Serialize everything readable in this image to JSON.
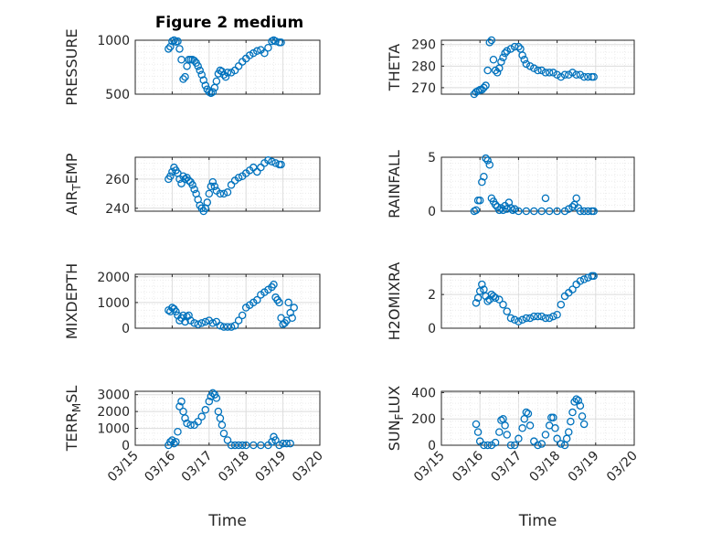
{
  "figure": {
    "title": "Figure 2 medium"
  },
  "style": {
    "marker_color": "#0072BD",
    "grid_color": "#dcdcdc",
    "axis_color": "#262626"
  },
  "chart_data": [
    {
      "type": "scatter",
      "ylabel": "PRESSURE",
      "yticks": [
        "500",
        "1000"
      ],
      "ylim": [
        500,
        1000
      ],
      "xlim": [
        "03/15",
        "03/20"
      ],
      "points": [
        [
          0.9,
          920
        ],
        [
          0.95,
          940
        ],
        [
          1.0,
          990
        ],
        [
          1.05,
          1000
        ],
        [
          1.1,
          985
        ],
        [
          1.15,
          990
        ],
        [
          1.2,
          920
        ],
        [
          1.25,
          820
        ],
        [
          1.3,
          640
        ],
        [
          1.35,
          660
        ],
        [
          1.4,
          760
        ],
        [
          1.45,
          820
        ],
        [
          1.5,
          820
        ],
        [
          1.55,
          820
        ],
        [
          1.6,
          810
        ],
        [
          1.65,
          790
        ],
        [
          1.7,
          760
        ],
        [
          1.75,
          720
        ],
        [
          1.8,
          680
        ],
        [
          1.85,
          630
        ],
        [
          1.9,
          580
        ],
        [
          1.95,
          545
        ],
        [
          2.0,
          520
        ],
        [
          2.05,
          510
        ],
        [
          2.1,
          520
        ],
        [
          2.15,
          560
        ],
        [
          2.2,
          620
        ],
        [
          2.25,
          690
        ],
        [
          2.3,
          720
        ],
        [
          2.35,
          710
        ],
        [
          2.4,
          680
        ],
        [
          2.45,
          660
        ],
        [
          2.5,
          700
        ],
        [
          2.6,
          700
        ],
        [
          2.7,
          720
        ],
        [
          2.8,
          760
        ],
        [
          2.9,
          800
        ],
        [
          3.0,
          830
        ],
        [
          3.1,
          860
        ],
        [
          3.2,
          880
        ],
        [
          3.3,
          900
        ],
        [
          3.4,
          910
        ],
        [
          3.5,
          880
        ],
        [
          3.6,
          930
        ],
        [
          3.7,
          990
        ],
        [
          3.75,
          1005
        ],
        [
          3.8,
          990
        ],
        [
          3.9,
          980
        ],
        [
          3.95,
          980
        ]
      ]
    },
    {
      "type": "scatter",
      "ylabel": "THETA",
      "yticks": [
        "270",
        "280",
        "290"
      ],
      "ylim": [
        267,
        292
      ],
      "xlim": [
        "03/15",
        "03/20"
      ],
      "points": [
        [
          0.85,
          267
        ],
        [
          0.9,
          268
        ],
        [
          0.95,
          268.5
        ],
        [
          1.0,
          269
        ],
        [
          1.05,
          269
        ],
        [
          1.1,
          270
        ],
        [
          1.15,
          271
        ],
        [
          1.2,
          278
        ],
        [
          1.25,
          291
        ],
        [
          1.3,
          292
        ],
        [
          1.35,
          283
        ],
        [
          1.4,
          278
        ],
        [
          1.45,
          277
        ],
        [
          1.5,
          279
        ],
        [
          1.55,
          282
        ],
        [
          1.6,
          284
        ],
        [
          1.65,
          286
        ],
        [
          1.7,
          287
        ],
        [
          1.8,
          288
        ],
        [
          1.9,
          289
        ],
        [
          2.0,
          289
        ],
        [
          2.05,
          288
        ],
        [
          2.1,
          285
        ],
        [
          2.15,
          283
        ],
        [
          2.2,
          281
        ],
        [
          2.3,
          280
        ],
        [
          2.4,
          279
        ],
        [
          2.5,
          278
        ],
        [
          2.6,
          278
        ],
        [
          2.7,
          277
        ],
        [
          2.8,
          277
        ],
        [
          2.9,
          277
        ],
        [
          3.0,
          276
        ],
        [
          3.1,
          275
        ],
        [
          3.2,
          276
        ],
        [
          3.3,
          276
        ],
        [
          3.4,
          277
        ],
        [
          3.5,
          276
        ],
        [
          3.6,
          276
        ],
        [
          3.7,
          275
        ],
        [
          3.8,
          275
        ],
        [
          3.9,
          275
        ],
        [
          3.95,
          275
        ]
      ]
    },
    {
      "type": "scatter",
      "ylabel": "AIR_TEMP",
      "yticks": [
        "240",
        "260"
      ],
      "ylim": [
        238,
        275
      ],
      "xlim": [
        "03/15",
        "03/20"
      ],
      "points": [
        [
          0.9,
          260
        ],
        [
          0.95,
          262
        ],
        [
          1.0,
          265
        ],
        [
          1.05,
          268
        ],
        [
          1.1,
          266
        ],
        [
          1.15,
          264
        ],
        [
          1.2,
          260
        ],
        [
          1.25,
          257
        ],
        [
          1.3,
          262
        ],
        [
          1.35,
          260
        ],
        [
          1.4,
          261
        ],
        [
          1.45,
          259
        ],
        [
          1.5,
          258
        ],
        [
          1.55,
          256
        ],
        [
          1.6,
          253
        ],
        [
          1.65,
          250
        ],
        [
          1.7,
          246
        ],
        [
          1.75,
          242
        ],
        [
          1.8,
          240
        ],
        [
          1.85,
          238
        ],
        [
          1.9,
          240
        ],
        [
          1.95,
          244
        ],
        [
          2.0,
          250
        ],
        [
          2.05,
          255
        ],
        [
          2.1,
          258
        ],
        [
          2.15,
          255
        ],
        [
          2.2,
          252
        ],
        [
          2.3,
          250
        ],
        [
          2.4,
          250
        ],
        [
          2.5,
          251
        ],
        [
          2.6,
          256
        ],
        [
          2.7,
          259
        ],
        [
          2.8,
          261
        ],
        [
          2.9,
          262
        ],
        [
          3.0,
          264
        ],
        [
          3.1,
          266
        ],
        [
          3.2,
          268
        ],
        [
          3.3,
          265
        ],
        [
          3.4,
          268
        ],
        [
          3.5,
          271
        ],
        [
          3.6,
          273
        ],
        [
          3.7,
          272
        ],
        [
          3.8,
          271
        ],
        [
          3.9,
          270
        ],
        [
          3.95,
          270
        ]
      ]
    },
    {
      "type": "scatter",
      "ylabel": "RAINFALL",
      "yticks": [
        "0",
        "5"
      ],
      "ylim": [
        0,
        5
      ],
      "xlim": [
        "03/15",
        "03/20"
      ],
      "points": [
        [
          0.85,
          0
        ],
        [
          0.9,
          0.1
        ],
        [
          0.95,
          1.0
        ],
        [
          1.0,
          1.0
        ],
        [
          1.05,
          2.7
        ],
        [
          1.1,
          3.2
        ],
        [
          1.15,
          4.9
        ],
        [
          1.2,
          4.7
        ],
        [
          1.25,
          4.3
        ],
        [
          1.3,
          1.2
        ],
        [
          1.35,
          0.9
        ],
        [
          1.4,
          0.6
        ],
        [
          1.45,
          0.4
        ],
        [
          1.5,
          0.1
        ],
        [
          1.55,
          0.3
        ],
        [
          1.6,
          0.1
        ],
        [
          1.65,
          0.5
        ],
        [
          1.7,
          0.2
        ],
        [
          1.75,
          0.8
        ],
        [
          1.8,
          0.3
        ],
        [
          1.85,
          0.1
        ],
        [
          1.9,
          0.2
        ],
        [
          2.0,
          0
        ],
        [
          2.2,
          0
        ],
        [
          2.4,
          0
        ],
        [
          2.6,
          0
        ],
        [
          2.7,
          1.2
        ],
        [
          2.8,
          0
        ],
        [
          3.0,
          0
        ],
        [
          3.2,
          0
        ],
        [
          3.3,
          0.2
        ],
        [
          3.4,
          0.4
        ],
        [
          3.45,
          0.6
        ],
        [
          3.5,
          1.2
        ],
        [
          3.55,
          0.3
        ],
        [
          3.6,
          0
        ],
        [
          3.7,
          0
        ],
        [
          3.8,
          0
        ],
        [
          3.9,
          0
        ],
        [
          3.95,
          0
        ]
      ]
    },
    {
      "type": "scatter",
      "ylabel": "MIXDEPTH",
      "yticks": [
        "0",
        "1000",
        "2000"
      ],
      "ylim": [
        0,
        2100
      ],
      "xlim": [
        "03/15",
        "03/20"
      ],
      "points": [
        [
          0.9,
          700
        ],
        [
          0.95,
          650
        ],
        [
          1.0,
          800
        ],
        [
          1.05,
          750
        ],
        [
          1.1,
          650
        ],
        [
          1.15,
          500
        ],
        [
          1.2,
          300
        ],
        [
          1.25,
          400
        ],
        [
          1.3,
          500
        ],
        [
          1.35,
          250
        ],
        [
          1.4,
          450
        ],
        [
          1.45,
          500
        ],
        [
          1.5,
          300
        ],
        [
          1.6,
          200
        ],
        [
          1.7,
          150
        ],
        [
          1.8,
          200
        ],
        [
          1.9,
          250
        ],
        [
          2.0,
          300
        ],
        [
          2.1,
          200
        ],
        [
          2.2,
          250
        ],
        [
          2.3,
          100
        ],
        [
          2.4,
          50
        ],
        [
          2.5,
          50
        ],
        [
          2.6,
          50
        ],
        [
          2.7,
          100
        ],
        [
          2.8,
          300
        ],
        [
          2.9,
          500
        ],
        [
          3.0,
          800
        ],
        [
          3.1,
          900
        ],
        [
          3.2,
          1000
        ],
        [
          3.3,
          1100
        ],
        [
          3.4,
          1300
        ],
        [
          3.5,
          1400
        ],
        [
          3.6,
          1500
        ],
        [
          3.7,
          1600
        ],
        [
          3.75,
          1700
        ],
        [
          3.8,
          1200
        ],
        [
          3.85,
          1100
        ],
        [
          3.9,
          1000
        ],
        [
          3.95,
          400
        ],
        [
          4.0,
          150
        ],
        [
          4.05,
          200
        ],
        [
          4.1,
          300
        ],
        [
          4.15,
          1000
        ],
        [
          4.2,
          600
        ],
        [
          4.25,
          400
        ],
        [
          4.3,
          800
        ]
      ]
    },
    {
      "type": "scatter",
      "ylabel": "H2OMIXRA",
      "yticks": [
        "0",
        "2"
      ],
      "ylim": [
        0,
        3.2
      ],
      "xlim": [
        "03/15",
        "03/20"
      ],
      "points": [
        [
          0.9,
          1.5
        ],
        [
          0.95,
          1.8
        ],
        [
          1.0,
          2.2
        ],
        [
          1.05,
          2.6
        ],
        [
          1.1,
          2.3
        ],
        [
          1.15,
          1.9
        ],
        [
          1.2,
          1.6
        ],
        [
          1.25,
          1.7
        ],
        [
          1.3,
          2.0
        ],
        [
          1.35,
          1.9
        ],
        [
          1.4,
          1.8
        ],
        [
          1.5,
          1.7
        ],
        [
          1.6,
          1.4
        ],
        [
          1.7,
          1.0
        ],
        [
          1.8,
          0.6
        ],
        [
          1.9,
          0.5
        ],
        [
          2.0,
          0.4
        ],
        [
          2.1,
          0.5
        ],
        [
          2.2,
          0.6
        ],
        [
          2.3,
          0.6
        ],
        [
          2.4,
          0.7
        ],
        [
          2.5,
          0.7
        ],
        [
          2.6,
          0.7
        ],
        [
          2.7,
          0.6
        ],
        [
          2.8,
          0.6
        ],
        [
          2.9,
          0.7
        ],
        [
          3.0,
          0.8
        ],
        [
          3.1,
          1.4
        ],
        [
          3.2,
          1.9
        ],
        [
          3.3,
          2.1
        ],
        [
          3.4,
          2.3
        ],
        [
          3.5,
          2.6
        ],
        [
          3.6,
          2.8
        ],
        [
          3.7,
          2.9
        ],
        [
          3.8,
          3.0
        ],
        [
          3.9,
          3.1
        ],
        [
          3.95,
          3.1
        ]
      ]
    },
    {
      "type": "scatter",
      "ylabel": "TERR_MSL",
      "yticks": [
        "0",
        "1000",
        "2000",
        "3000"
      ],
      "ylim": [
        0,
        3200
      ],
      "xlim": [
        "03/15",
        "03/20"
      ],
      "points": [
        [
          0.9,
          0
        ],
        [
          0.95,
          200
        ],
        [
          1.0,
          300
        ],
        [
          1.05,
          100
        ],
        [
          1.1,
          200
        ],
        [
          1.15,
          800
        ],
        [
          1.2,
          2300
        ],
        [
          1.25,
          2600
        ],
        [
          1.3,
          2000
        ],
        [
          1.35,
          1600
        ],
        [
          1.4,
          1300
        ],
        [
          1.5,
          1200
        ],
        [
          1.6,
          1200
        ],
        [
          1.7,
          1400
        ],
        [
          1.8,
          1700
        ],
        [
          1.9,
          2100
        ],
        [
          2.0,
          2600
        ],
        [
          2.05,
          2900
        ],
        [
          2.1,
          3100
        ],
        [
          2.15,
          3000
        ],
        [
          2.2,
          2800
        ],
        [
          2.25,
          2000
        ],
        [
          2.3,
          1600
        ],
        [
          2.35,
          1200
        ],
        [
          2.4,
          700
        ],
        [
          2.5,
          300
        ],
        [
          2.6,
          0
        ],
        [
          2.7,
          0
        ],
        [
          2.8,
          0
        ],
        [
          2.9,
          0
        ],
        [
          3.0,
          0
        ],
        [
          3.2,
          0
        ],
        [
          3.4,
          0
        ],
        [
          3.6,
          0
        ],
        [
          3.7,
          200
        ],
        [
          3.75,
          500
        ],
        [
          3.8,
          300
        ],
        [
          3.9,
          0
        ],
        [
          4.0,
          100
        ],
        [
          4.1,
          100
        ],
        [
          4.2,
          100
        ]
      ]
    },
    {
      "type": "scatter",
      "ylabel": "SUN_FLUX",
      "yticks": [
        "0",
        "200",
        "400"
      ],
      "ylim": [
        0,
        410
      ],
      "xlim": [
        "03/15",
        "03/20"
      ],
      "points": [
        [
          0.9,
          160
        ],
        [
          0.95,
          100
        ],
        [
          1.0,
          30
        ],
        [
          1.1,
          0
        ],
        [
          1.2,
          0
        ],
        [
          1.3,
          0
        ],
        [
          1.4,
          20
        ],
        [
          1.5,
          100
        ],
        [
          1.55,
          190
        ],
        [
          1.6,
          200
        ],
        [
          1.65,
          150
        ],
        [
          1.7,
          80
        ],
        [
          1.8,
          0
        ],
        [
          1.9,
          0
        ],
        [
          2.0,
          50
        ],
        [
          2.1,
          130
        ],
        [
          2.15,
          200
        ],
        [
          2.2,
          250
        ],
        [
          2.25,
          240
        ],
        [
          2.3,
          150
        ],
        [
          2.4,
          30
        ],
        [
          2.5,
          0
        ],
        [
          2.6,
          10
        ],
        [
          2.7,
          80
        ],
        [
          2.8,
          150
        ],
        [
          2.85,
          210
        ],
        [
          2.9,
          210
        ],
        [
          2.95,
          130
        ],
        [
          3.0,
          50
        ],
        [
          3.1,
          10
        ],
        [
          3.2,
          0
        ],
        [
          3.25,
          50
        ],
        [
          3.3,
          100
        ],
        [
          3.35,
          180
        ],
        [
          3.4,
          250
        ],
        [
          3.45,
          330
        ],
        [
          3.5,
          350
        ],
        [
          3.55,
          340
        ],
        [
          3.6,
          300
        ],
        [
          3.65,
          220
        ],
        [
          3.7,
          160
        ]
      ]
    }
  ],
  "x_axis": {
    "ticks": [
      "03/15",
      "03/16",
      "03/17",
      "03/18",
      "03/19",
      "03/20"
    ],
    "xlabel": "Time"
  }
}
